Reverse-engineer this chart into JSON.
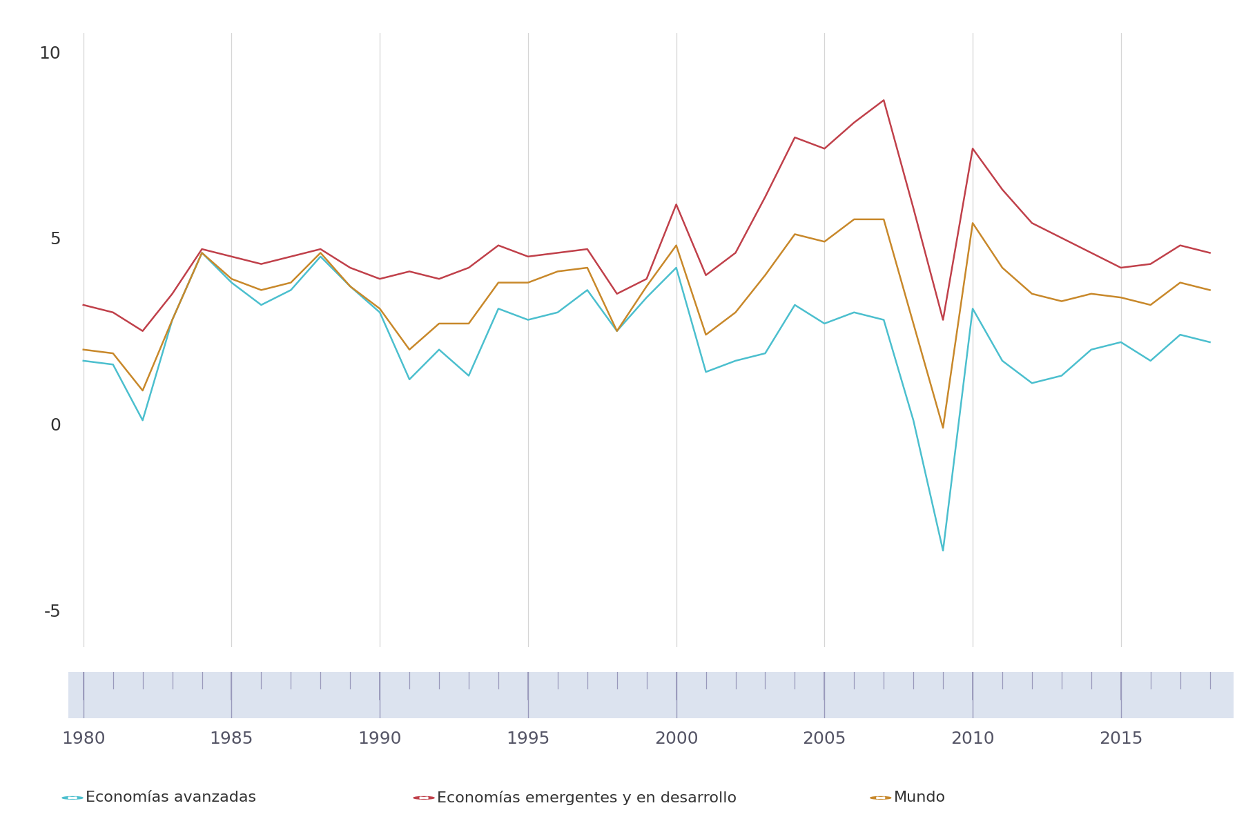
{
  "years": [
    1980,
    1981,
    1982,
    1983,
    1984,
    1985,
    1986,
    1987,
    1988,
    1989,
    1990,
    1991,
    1992,
    1993,
    1994,
    1995,
    1996,
    1997,
    1998,
    1999,
    2000,
    2001,
    2002,
    2003,
    2004,
    2005,
    2006,
    2007,
    2008,
    2009,
    2010,
    2011,
    2012,
    2013,
    2014,
    2015,
    2016,
    2017,
    2018
  ],
  "advanced": [
    1.7,
    1.6,
    0.1,
    2.8,
    4.6,
    3.8,
    3.2,
    3.6,
    4.5,
    3.7,
    3.0,
    1.2,
    2.0,
    1.3,
    3.1,
    2.8,
    3.0,
    3.6,
    2.5,
    3.4,
    4.2,
    1.4,
    1.7,
    1.9,
    3.2,
    2.7,
    3.0,
    2.8,
    0.1,
    -3.4,
    3.1,
    1.7,
    1.1,
    1.3,
    2.0,
    2.2,
    1.7,
    2.4,
    2.2
  ],
  "emerging": [
    3.2,
    3.0,
    2.5,
    3.5,
    4.7,
    4.5,
    4.3,
    4.5,
    4.7,
    4.2,
    3.9,
    4.1,
    3.9,
    4.2,
    4.8,
    4.5,
    4.6,
    4.7,
    3.5,
    3.9,
    5.9,
    4.0,
    4.6,
    6.1,
    7.7,
    7.4,
    8.1,
    8.7,
    5.8,
    2.8,
    7.4,
    6.3,
    5.4,
    5.0,
    4.6,
    4.2,
    4.3,
    4.8,
    4.6
  ],
  "world": [
    2.0,
    1.9,
    0.9,
    2.8,
    4.6,
    3.9,
    3.6,
    3.8,
    4.6,
    3.7,
    3.1,
    2.0,
    2.7,
    2.7,
    3.8,
    3.8,
    4.1,
    4.2,
    2.5,
    3.7,
    4.8,
    2.4,
    3.0,
    4.0,
    5.1,
    4.9,
    5.5,
    5.5,
    2.7,
    -0.1,
    5.4,
    4.2,
    3.5,
    3.3,
    3.5,
    3.4,
    3.2,
    3.8,
    3.6
  ],
  "color_advanced": "#4BBFCE",
  "color_emerging": "#C0404A",
  "color_world": "#C8882A",
  "label_advanced": "Economías avanzadas",
  "label_emerging": "Economías emergentes y en desarrollo",
  "label_world": "Mundo",
  "ylim": [
    -6,
    10.5
  ],
  "yticks": [
    -5,
    0,
    5,
    10
  ],
  "xlim_start": 1979.5,
  "xlim_end": 2018.8,
  "grid_color": "#d5d5d5",
  "timeline_color": "#dce3ef",
  "timeline_tick_color": "#9999bb",
  "background_color": "#ffffff",
  "vline_years": [
    1980,
    1985,
    1990,
    1995,
    2000,
    2005,
    2010,
    2015
  ],
  "linewidth": 1.8,
  "year_labels": [
    1980,
    1985,
    1990,
    1995,
    2000,
    2005,
    2010,
    2015
  ]
}
